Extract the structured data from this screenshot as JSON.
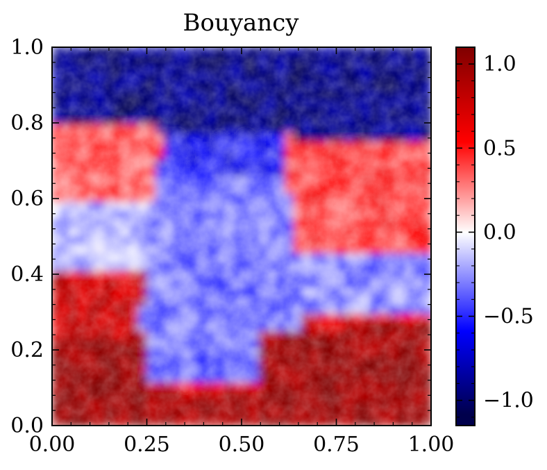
{
  "chart_data": {
    "type": "heatmap",
    "title": "Bouyancy",
    "xlabel": "",
    "ylabel": "",
    "xlim": [
      0.0,
      1.0
    ],
    "ylim": [
      0.0,
      1.0
    ],
    "x_ticks": [
      "0.00",
      "0.25",
      "0.50",
      "0.75",
      "1.00"
    ],
    "y_ticks": [
      "0.0",
      "0.2",
      "0.4",
      "0.6",
      "0.8",
      "1.0"
    ],
    "colorbar": {
      "range": [
        -1.15,
        1.1
      ],
      "ticks": [
        1.0,
        0.5,
        0.0,
        -0.5,
        -1.0
      ],
      "tick_labels": [
        "1.0",
        "0.5",
        "0.0",
        "−0.5",
        "−1.0"
      ],
      "colormap": "seismic",
      "colors": [
        "#00004c",
        "#0000ff",
        "#ffffff",
        "#ff0000",
        "#7f0000"
      ]
    },
    "field_description_regions": [
      {
        "name": "top-layer",
        "y_range": [
          0.78,
          1.0
        ],
        "value": -0.8
      },
      {
        "name": "upper-middle-left",
        "y_range": [
          0.6,
          0.75
        ],
        "value": 0.35
      },
      {
        "name": "center-plume",
        "y_range": [
          0.25,
          0.75
        ],
        "value": -0.25
      },
      {
        "name": "upper-middle-right",
        "y_range": [
          0.4,
          0.75
        ],
        "value": 0.4
      },
      {
        "name": "bottom-layer",
        "y_range": [
          0.0,
          0.3
        ],
        "value": 0.85
      }
    ]
  }
}
